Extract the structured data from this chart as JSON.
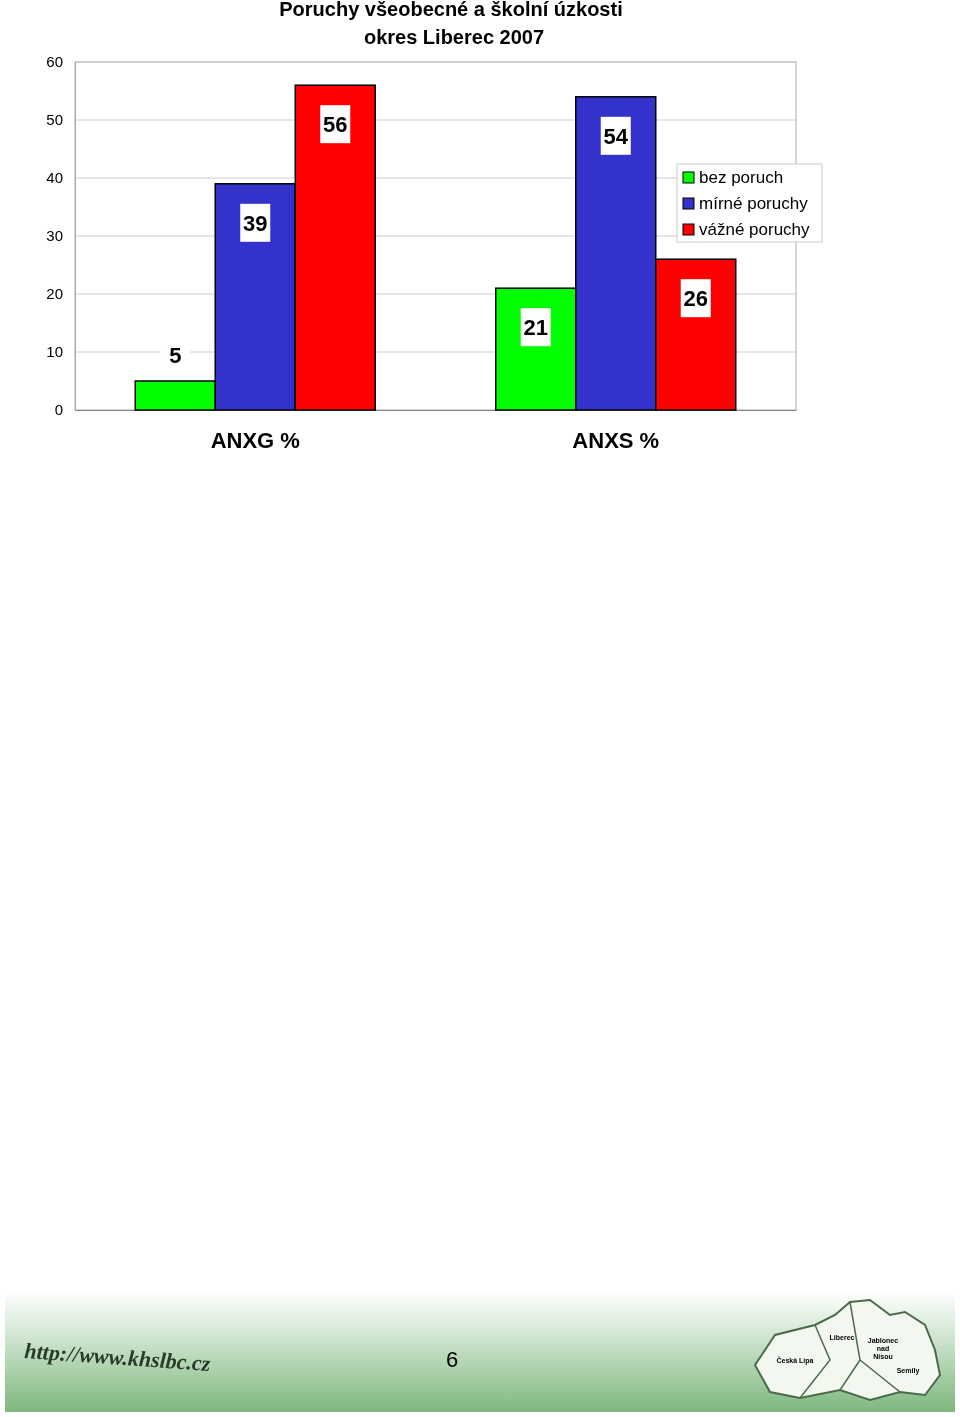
{
  "chart_data": {
    "type": "bar",
    "title": "Poruchy všeobecné a školní úzkosti",
    "subtitle": "okres Liberec 2007",
    "categories": [
      "ANXG  %",
      "ANXS  %"
    ],
    "series": [
      {
        "name": "bez poruch",
        "color": "#00ff00",
        "values": [
          5,
          21
        ]
      },
      {
        "name": "mírné poruchy",
        "color": "#3333cc",
        "values": [
          39,
          54
        ]
      },
      {
        "name": "vážné poruchy",
        "color": "#ff0000",
        "values": [
          56,
          26
        ]
      }
    ],
    "ylim": [
      0,
      60
    ],
    "yticks": [
      0,
      10,
      20,
      30,
      40,
      50,
      60
    ],
    "grid": "y",
    "legend": "right",
    "data_labels": true,
    "annotations": [
      "http://www.khslbc.cz",
      "6",
      "Liberec",
      "Česká Lípa",
      "Jablonec nad Nisou",
      "Semily"
    ]
  }
}
